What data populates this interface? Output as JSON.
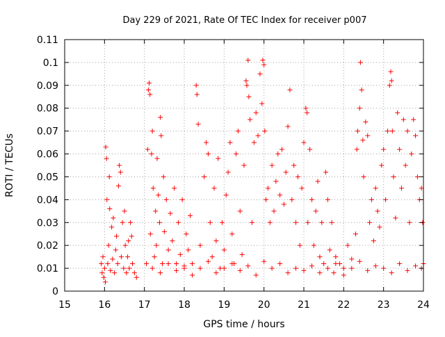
{
  "chart_data": {
    "type": "scatter",
    "title": "Day 229 of 2021, Rate Of TEC Index for receiver p007",
    "xlabel": "GPS time / hours",
    "ylabel": "ROTI / TECUs",
    "xlim": [
      15,
      24
    ],
    "ylim": [
      0,
      0.11
    ],
    "x_ticks": [
      "15",
      "16",
      "17",
      "18",
      "19",
      "20",
      "21",
      "22",
      "23",
      "24"
    ],
    "y_ticks": [
      "0",
      "0.01",
      "0.02",
      "0.03",
      "0.04",
      "0.05",
      "0.06",
      "0.07",
      "0.08",
      "0.09",
      "0.1",
      "0.11"
    ],
    "grid": true,
    "marker": "+",
    "color": "#ff0000",
    "series": [
      {
        "points": [
          [
            15.92,
            0.012
          ],
          [
            15.94,
            0.008
          ],
          [
            15.96,
            0.015
          ],
          [
            15.98,
            0.006
          ],
          [
            16.0,
            0.01
          ],
          [
            16.02,
            0.004
          ],
          [
            16.03,
            0.063
          ],
          [
            16.05,
            0.058
          ],
          [
            16.06,
            0.04
          ],
          [
            16.08,
            0.012
          ],
          [
            16.1,
            0.02
          ],
          [
            16.12,
            0.05
          ],
          [
            16.13,
            0.036
          ],
          [
            16.15,
            0.009
          ],
          [
            16.18,
            0.028
          ],
          [
            16.2,
            0.014
          ],
          [
            16.22,
            0.032
          ],
          [
            16.25,
            0.008
          ],
          [
            16.28,
            0.018
          ],
          [
            16.3,
            0.024
          ],
          [
            16.33,
            0.012
          ],
          [
            16.35,
            0.046
          ],
          [
            16.37,
            0.055
          ],
          [
            16.4,
            0.052
          ],
          [
            16.42,
            0.015
          ],
          [
            16.45,
            0.03
          ],
          [
            16.48,
            0.01
          ],
          [
            16.5,
            0.035
          ],
          [
            16.52,
            0.02
          ],
          [
            16.55,
            0.008
          ],
          [
            16.58,
            0.015
          ],
          [
            16.6,
            0.022
          ],
          [
            16.62,
            0.01
          ],
          [
            16.65,
            0.03
          ],
          [
            16.68,
            0.024
          ],
          [
            16.7,
            0.012
          ],
          [
            16.75,
            0.008
          ],
          [
            16.8,
            0.006
          ],
          [
            17.05,
            0.012
          ],
          [
            17.08,
            0.062
          ],
          [
            17.1,
            0.088
          ],
          [
            17.12,
            0.091
          ],
          [
            17.14,
            0.086
          ],
          [
            17.15,
            0.025
          ],
          [
            17.18,
            0.06
          ],
          [
            17.2,
            0.07
          ],
          [
            17.22,
            0.045
          ],
          [
            17.25,
            0.015
          ],
          [
            17.28,
            0.035
          ],
          [
            17.3,
            0.02
          ],
          [
            17.32,
            0.058
          ],
          [
            17.35,
            0.042
          ],
          [
            17.38,
            0.03
          ],
          [
            17.4,
            0.076
          ],
          [
            17.42,
            0.068
          ],
          [
            17.45,
            0.012
          ],
          [
            17.48,
            0.05
          ],
          [
            17.5,
            0.026
          ],
          [
            17.55,
            0.04
          ],
          [
            17.6,
            0.018
          ],
          [
            17.65,
            0.034
          ],
          [
            17.7,
            0.022
          ],
          [
            17.75,
            0.045
          ],
          [
            17.8,
            0.012
          ],
          [
            17.85,
            0.03
          ],
          [
            17.9,
            0.016
          ],
          [
            17.95,
            0.04
          ],
          [
            18.0,
            0.01
          ],
          [
            18.05,
            0.025
          ],
          [
            18.1,
            0.018
          ],
          [
            18.15,
            0.033
          ],
          [
            18.2,
            0.012
          ],
          [
            18.3,
            0.09
          ],
          [
            18.32,
            0.086
          ],
          [
            18.35,
            0.073
          ],
          [
            18.4,
            0.02
          ],
          [
            18.5,
            0.05
          ],
          [
            18.55,
            0.065
          ],
          [
            18.6,
            0.06
          ],
          [
            18.65,
            0.03
          ],
          [
            18.7,
            0.015
          ],
          [
            18.75,
            0.045
          ],
          [
            18.8,
            0.022
          ],
          [
            18.85,
            0.058
          ],
          [
            18.9,
            0.01
          ],
          [
            18.95,
            0.03
          ],
          [
            19.0,
            0.018
          ],
          [
            19.05,
            0.042
          ],
          [
            19.1,
            0.052
          ],
          [
            19.15,
            0.065
          ],
          [
            19.2,
            0.025
          ],
          [
            19.25,
            0.012
          ],
          [
            19.3,
            0.06
          ],
          [
            19.35,
            0.07
          ],
          [
            19.4,
            0.035
          ],
          [
            19.45,
            0.016
          ],
          [
            19.5,
            0.055
          ],
          [
            19.55,
            0.092
          ],
          [
            19.57,
            0.09
          ],
          [
            19.6,
            0.101
          ],
          [
            19.62,
            0.085
          ],
          [
            19.65,
            0.075
          ],
          [
            19.7,
            0.03
          ],
          [
            19.75,
            0.065
          ],
          [
            19.8,
            0.078
          ],
          [
            19.85,
            0.068
          ],
          [
            19.9,
            0.095
          ],
          [
            19.95,
            0.082
          ],
          [
            19.97,
            0.101
          ],
          [
            20.0,
            0.099
          ],
          [
            20.02,
            0.07
          ],
          [
            20.05,
            0.04
          ],
          [
            20.1,
            0.045
          ],
          [
            20.15,
            0.03
          ],
          [
            20.2,
            0.055
          ],
          [
            20.25,
            0.035
          ],
          [
            20.3,
            0.048
          ],
          [
            20.35,
            0.06
          ],
          [
            20.4,
            0.042
          ],
          [
            20.45,
            0.062
          ],
          [
            20.5,
            0.038
          ],
          [
            20.55,
            0.052
          ],
          [
            20.6,
            0.072
          ],
          [
            20.65,
            0.088
          ],
          [
            20.7,
            0.04
          ],
          [
            20.75,
            0.055
          ],
          [
            20.8,
            0.03
          ],
          [
            20.85,
            0.05
          ],
          [
            20.9,
            0.02
          ],
          [
            20.95,
            0.045
          ],
          [
            21.0,
            0.065
          ],
          [
            21.05,
            0.08
          ],
          [
            21.08,
            0.078
          ],
          [
            21.1,
            0.03
          ],
          [
            21.15,
            0.062
          ],
          [
            21.2,
            0.04
          ],
          [
            21.25,
            0.02
          ],
          [
            21.3,
            0.035
          ],
          [
            21.35,
            0.048
          ],
          [
            21.4,
            0.015
          ],
          [
            21.45,
            0.03
          ],
          [
            21.5,
            0.012
          ],
          [
            21.55,
            0.052
          ],
          [
            21.6,
            0.04
          ],
          [
            21.65,
            0.018
          ],
          [
            21.7,
            0.03
          ],
          [
            21.75,
            0.008
          ],
          [
            21.8,
            0.015
          ],
          [
            21.9,
            0.012
          ],
          [
            22.0,
            0.01
          ],
          [
            22.1,
            0.02
          ],
          [
            22.2,
            0.014
          ],
          [
            22.3,
            0.025
          ],
          [
            22.33,
            0.062
          ],
          [
            22.35,
            0.07
          ],
          [
            22.4,
            0.08
          ],
          [
            22.42,
            0.1
          ],
          [
            22.45,
            0.088
          ],
          [
            22.48,
            0.066
          ],
          [
            22.5,
            0.05
          ],
          [
            22.55,
            0.074
          ],
          [
            22.6,
            0.068
          ],
          [
            22.65,
            0.03
          ],
          [
            22.7,
            0.04
          ],
          [
            22.75,
            0.022
          ],
          [
            22.8,
            0.045
          ],
          [
            22.85,
            0.035
          ],
          [
            22.9,
            0.028
          ],
          [
            22.95,
            0.055
          ],
          [
            23.0,
            0.062
          ],
          [
            23.05,
            0.04
          ],
          [
            23.1,
            0.07
          ],
          [
            23.15,
            0.09
          ],
          [
            23.18,
            0.096
          ],
          [
            23.2,
            0.092
          ],
          [
            23.22,
            0.07
          ],
          [
            23.25,
            0.05
          ],
          [
            23.3,
            0.032
          ],
          [
            23.35,
            0.078
          ],
          [
            23.4,
            0.062
          ],
          [
            23.45,
            0.045
          ],
          [
            23.5,
            0.075
          ],
          [
            23.55,
            0.055
          ],
          [
            23.6,
            0.07
          ],
          [
            23.65,
            0.03
          ],
          [
            23.7,
            0.06
          ],
          [
            23.75,
            0.075
          ],
          [
            23.8,
            0.068
          ],
          [
            23.85,
            0.05
          ],
          [
            23.9,
            0.04
          ],
          [
            23.95,
            0.045
          ],
          [
            23.98,
            0.03
          ],
          [
            24.0,
            0.012
          ],
          [
            17.2,
            0.01
          ],
          [
            17.4,
            0.008
          ],
          [
            17.6,
            0.012
          ],
          [
            17.8,
            0.009
          ],
          [
            18.0,
            0.011
          ],
          [
            18.2,
            0.007
          ],
          [
            18.4,
            0.01
          ],
          [
            18.6,
            0.013
          ],
          [
            18.8,
            0.008
          ],
          [
            19.0,
            0.01
          ],
          [
            19.2,
            0.012
          ],
          [
            19.4,
            0.009
          ],
          [
            19.6,
            0.011
          ],
          [
            19.8,
            0.007
          ],
          [
            20.0,
            0.013
          ],
          [
            20.2,
            0.01
          ],
          [
            20.4,
            0.012
          ],
          [
            20.6,
            0.008
          ],
          [
            20.8,
            0.01
          ],
          [
            21.0,
            0.009
          ],
          [
            21.2,
            0.011
          ],
          [
            21.4,
            0.008
          ],
          [
            21.6,
            0.01
          ],
          [
            21.8,
            0.012
          ],
          [
            22.0,
            0.007
          ],
          [
            22.2,
            0.01
          ],
          [
            22.4,
            0.013
          ],
          [
            22.6,
            0.009
          ],
          [
            22.8,
            0.011
          ],
          [
            23.0,
            0.01
          ],
          [
            23.2,
            0.008
          ],
          [
            23.4,
            0.012
          ],
          [
            23.6,
            0.009
          ],
          [
            23.8,
            0.011
          ],
          [
            23.95,
            0.01
          ]
        ]
      }
    ]
  }
}
